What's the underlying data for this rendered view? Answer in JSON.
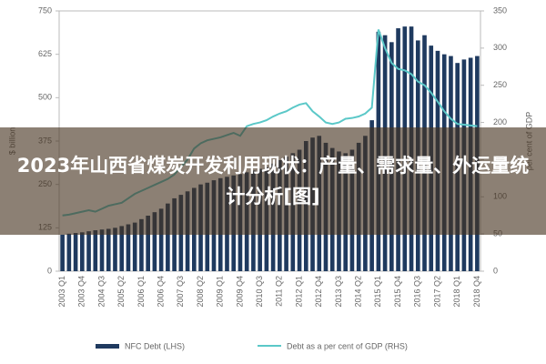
{
  "banner_title": "2023年山西省煤炭开发利用现状：产量、需求量、外运量统计分析[图]",
  "chart_data": {
    "type": "bar-line",
    "ylabel": "$ billion",
    "y2label": "per cent of GDP",
    "categories": [
      "2003 Q1",
      null,
      null,
      "2003 Q4",
      null,
      null,
      "2004 Q3",
      null,
      null,
      "2005 Q2",
      null,
      null,
      "2006 Q1",
      null,
      null,
      "2006 Q4",
      null,
      null,
      "2007 Q3",
      null,
      null,
      "2008 Q2",
      null,
      null,
      "2009 Q1",
      null,
      null,
      "2009 Q4",
      null,
      null,
      "2010 Q3",
      null,
      null,
      "2011 Q2",
      null,
      null,
      "2012 Q1",
      null,
      null,
      "2012 Q4",
      null,
      null,
      "2013 Q3",
      null,
      null,
      "2014 Q2",
      null,
      null,
      "2015 Q1",
      null,
      null,
      "2015 Q4",
      null,
      null,
      "2016 Q3",
      null,
      null,
      "2017 Q2",
      null,
      null,
      "2018 Q1",
      null,
      null,
      "2018 Q4"
    ],
    "series": [
      {
        "name": "NFC Debt (LHS)",
        "color": "#1f3a5f",
        "kind": "bar",
        "axis": "y",
        "values": [
          105,
          108,
          110,
          112,
          115,
          118,
          120,
          122,
          125,
          130,
          135,
          140,
          150,
          160,
          170,
          180,
          195,
          210,
          220,
          230,
          240,
          250,
          255,
          262,
          268,
          272,
          276,
          280,
          285,
          290,
          295,
          300,
          310,
          320,
          330,
          340,
          350,
          375,
          385,
          390,
          370,
          355,
          345,
          340,
          350,
          370,
          390,
          435,
          690,
          680,
          660,
          700,
          705,
          705,
          665,
          680,
          650,
          635,
          625,
          620,
          600,
          610,
          615,
          620
        ]
      },
      {
        "name": "Debt as a per cent of GDP (RHS)",
        "color": "#5bc8c8",
        "kind": "line",
        "axis": "y2",
        "values": [
          75,
          76,
          78,
          80,
          82,
          80,
          84,
          88,
          90,
          92,
          98,
          104,
          108,
          112,
          116,
          120,
          124,
          130,
          140,
          150,
          165,
          172,
          176,
          178,
          180,
          183,
          186,
          182,
          195,
          198,
          200,
          203,
          208,
          212,
          215,
          220,
          224,
          226,
          215,
          208,
          200,
          198,
          200,
          205,
          206,
          208,
          212,
          220,
          325,
          300,
          280,
          272,
          270,
          265,
          255,
          250,
          240,
          228,
          215,
          205,
          198,
          197,
          196,
          195
        ]
      }
    ],
    "ylim": [
      0,
      750
    ],
    "yticks": [
      0,
      125,
      250,
      375,
      500,
      625,
      750
    ],
    "y2lim": [
      0,
      350
    ],
    "y2ticks": [
      0,
      50,
      100,
      150,
      200,
      250,
      300,
      350
    ]
  }
}
